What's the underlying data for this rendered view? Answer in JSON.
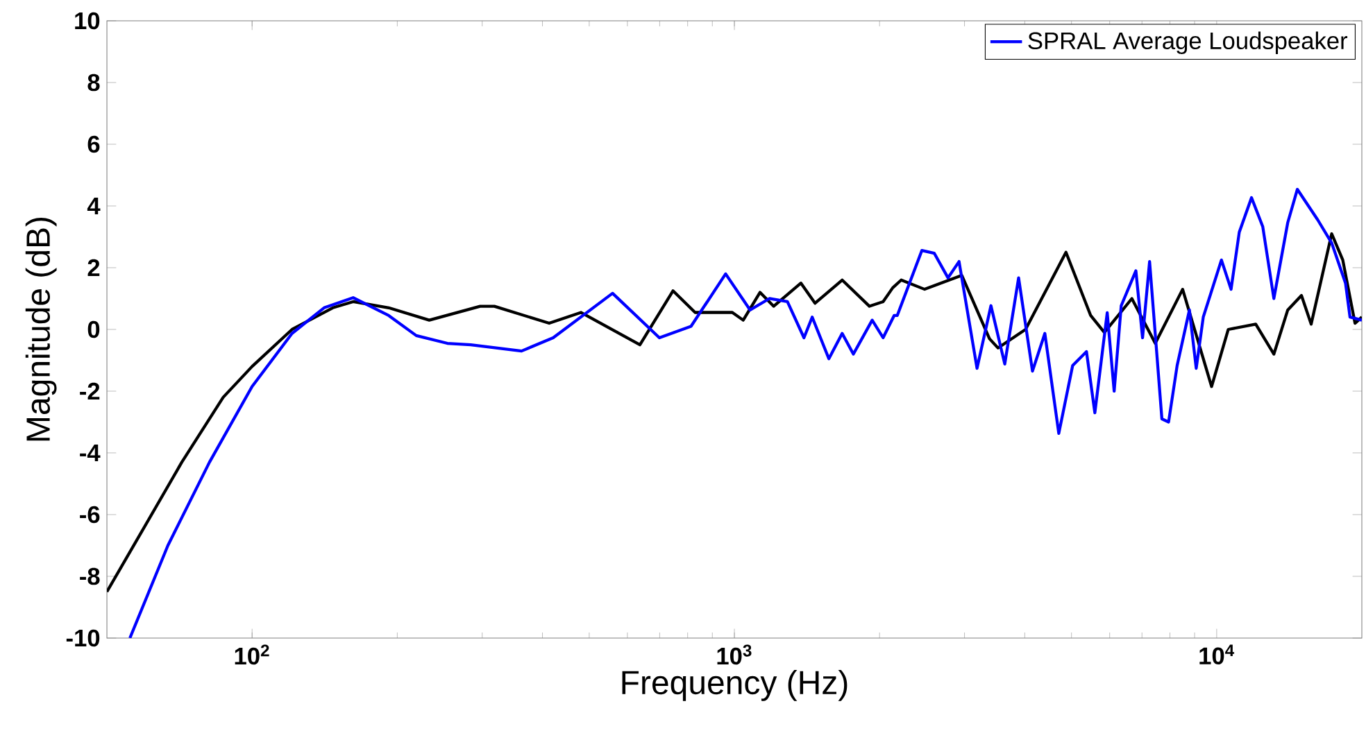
{
  "chart_data": {
    "type": "line",
    "xlabel": "Frequency (Hz)",
    "ylabel": "Magnitude (dB)",
    "log": "x",
    "xlim": [
      50,
      20000
    ],
    "ylim": [
      -10,
      10
    ],
    "xticks": [
      {
        "value": 100,
        "label": "10$^{2}$"
      },
      {
        "value": 1000,
        "label": "10$^{3}$"
      },
      {
        "value": 10000,
        "label": "10$^{4}$"
      }
    ],
    "yticks": [
      -10,
      -8,
      -6,
      -4,
      -2,
      0,
      2,
      4,
      6,
      8,
      10
    ],
    "grid": false,
    "legend": "top right",
    "line_style": "solid",
    "marker": "none",
    "series": [
      {
        "color": "#000000",
        "x": [
          50,
          58.8,
          71.5,
          87.1,
          100,
          121,
          147,
          162,
          192,
          233,
          297,
          318,
          413,
          481,
          637,
          746,
          829,
          990,
          1043,
          1130,
          1206,
          1374,
          1470,
          1673,
          1906,
          2034,
          2130,
          2218,
          2480,
          2962,
          3380,
          3520,
          4015,
          4870,
          5480,
          5850,
          6670,
          7460,
          8500,
          9760,
          10570,
          12050,
          13140,
          14040,
          14990,
          15700,
          17320,
          18260,
          19360,
          20000
        ],
        "values": [
          -8.5,
          -6.6,
          -4.3,
          -2.2,
          -1.2,
          0.0,
          0.7,
          0.9,
          0.7,
          0.3,
          0.75,
          0.75,
          0.2,
          0.55,
          -0.5,
          1.25,
          0.55,
          0.55,
          0.3,
          1.2,
          0.75,
          1.5,
          0.85,
          1.6,
          0.75,
          0.9,
          1.35,
          1.6,
          1.3,
          1.75,
          -0.3,
          -0.6,
          0.0,
          2.5,
          0.45,
          -0.1,
          1.0,
          -0.45,
          1.3,
          -1.85,
          0.0,
          0.17,
          -0.8,
          0.63,
          1.1,
          0.17,
          3.1,
          2.25,
          0.2,
          0.4
        ]
      },
      {
        "name": "SPRAL Average Loudspeaker",
        "color": "#0000ff",
        "x": [
          55.8,
          66.9,
          81.6,
          100,
          121,
          141,
          162,
          192,
          219,
          254,
          284,
          362,
          421,
          559,
          699,
          813,
          959,
          1078,
          1182,
          1288,
          1394,
          1450,
          1570,
          1673,
          1765,
          1931,
          2034,
          2144,
          2176,
          2448,
          2596,
          2773,
          2923,
          3185,
          3404,
          3636,
          3885,
          4150,
          4403,
          4706,
          5028,
          5371,
          5590,
          5930,
          6130,
          6340,
          6800,
          7020,
          7260,
          7700,
          7950,
          8280,
          8780,
          9070,
          9380,
          10230,
          10710,
          11140,
          11810,
          12460,
          13140,
          14040,
          14700,
          16200,
          17320,
          18500,
          18900,
          20000
        ],
        "values": [
          -10,
          -7.0,
          -4.3,
          -1.85,
          -0.13,
          0.7,
          1.03,
          0.45,
          -0.2,
          -0.45,
          -0.5,
          -0.7,
          -0.27,
          1.17,
          -0.27,
          0.1,
          1.8,
          0.63,
          1.0,
          0.9,
          -0.27,
          0.4,
          -0.95,
          -0.13,
          -0.8,
          0.3,
          -0.27,
          0.45,
          0.45,
          2.56,
          2.47,
          1.67,
          2.2,
          -1.26,
          0.77,
          -1.12,
          1.67,
          -1.35,
          -0.13,
          -3.37,
          -1.17,
          -0.72,
          -2.7,
          0.54,
          -2.0,
          0.77,
          1.9,
          -0.27,
          2.2,
          -2.9,
          -3.0,
          -1.17,
          0.63,
          -1.26,
          0.4,
          2.25,
          1.3,
          3.15,
          4.27,
          3.33,
          1.0,
          3.46,
          4.54,
          3.55,
          2.8,
          1.5,
          0.4,
          0.3
        ]
      }
    ]
  }
}
